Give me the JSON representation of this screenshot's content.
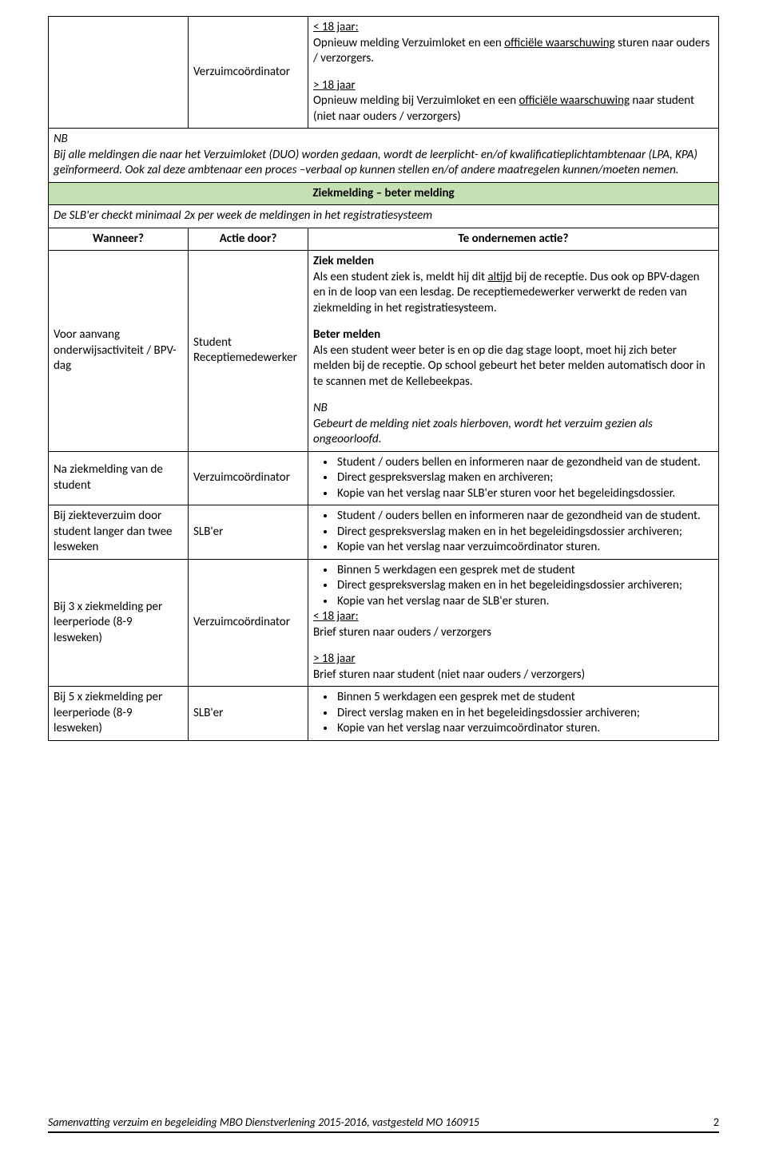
{
  "row1": {
    "col2": "Verzuimcoördinator",
    "u18_h": "< 18 jaar:",
    "u18_text1": "Opnieuw melding Verzuimloket en een ",
    "u18_u": "officiële waarschuwing",
    "u18_text2": " sturen naar ouders / verzorgers.",
    "o18_h": "> 18 jaar",
    "o18_text1": "Opnieuw melding bij Verzuimloket en een ",
    "o18_u": "officiële waarschuwing",
    "o18_text2": " naar student (niet naar ouders / verzorgers)"
  },
  "nb_row": {
    "nb": "NB",
    "line1a": "Bij alle meldingen die naar het Verzuimloket (DUO) worden gedaan, wordt de leerplicht",
    "line1b": "- en/of kwalificatieplichtambtenaar (LPA, KPA) geïnformeerd. Ook zal deze ambtenaar een proces –verbaal op kunnen stellen en/of andere maatregelen kunnen/moeten nemen."
  },
  "section": "Ziekmelding – beter melding",
  "intro": "De SLB'er checkt minimaal 2x per week de meldingen in het registratiesysteem",
  "headers": {
    "when": "Wanneer?",
    "who": "Actie door?",
    "what": "Te ondernemen actie?"
  },
  "row_a": {
    "when": "Voor aanvang onderwijsactiviteit / BPV-dag",
    "who": "Student Receptiemedewerker",
    "ziek_h": "Ziek melden",
    "ziek_t1": "Als een student ziek is, meldt hij dit ",
    "ziek_u": "altijd",
    "ziek_t2": " bij de receptie. Dus ook op BPV-dagen en in de loop van een lesdag. De receptiemedewerker verwerkt de reden van ziekmelding in het registratiesysteem.",
    "beter_h": "Beter melden",
    "beter_t": "Als een student weer beter is en op die dag stage loopt, moet hij zich beter melden bij de receptie. Op school gebeurt het beter melden automatisch door in te scannen met de Kellebeekpas.",
    "nb": "NB",
    "nb_t": "Gebeurt de melding niet zoals hierboven, wordt het verzuim gezien als ongeoorloofd."
  },
  "row_b": {
    "when": "Na ziekmelding van de student",
    "who": "Verzuimcoördinator",
    "li1": "Student / ouders bellen en informeren naar de gezondheid van de student.",
    "li2": "Direct gespreksverslag maken en archiveren;",
    "li3": "Kopie van het verslag naar SLB'er sturen voor het begeleidingsdossier."
  },
  "row_c": {
    "when": "Bij ziekteverzuim door student langer dan twee lesweken",
    "who": "SLB'er",
    "li1": "Student / ouders bellen en informeren naar de gezondheid van de student.",
    "li2": "Direct gespreksverslag maken en in het begeleidingsdossier archiveren;",
    "li3": "Kopie van het verslag naar verzuimcoördinator sturen."
  },
  "row_d": {
    "when": "Bij 3 x ziekmelding per leerperiode (8-9 lesweken)",
    "who": "Verzuimcoördinator",
    "li1": "Binnen 5 werkdagen een gesprek met de student",
    "li2": "Direct gespreksverslag maken en in het begeleidingsdossier archiveren;",
    "li3": "Kopie van het verslag naar de SLB'er sturen.",
    "u18_h": "< 18 jaar:",
    "u18_t": "Brief sturen naar ouders / verzorgers",
    "o18_h": "> 18 jaar",
    "o18_t": "Brief sturen naar student (niet naar ouders / verzorgers)"
  },
  "row_e": {
    "when": "Bij 5 x ziekmelding per leerperiode (8-9 lesweken)",
    "who": "SLB'er",
    "li1": "Binnen 5 werkdagen een gesprek met de student",
    "li2": "Direct verslag maken en in het begeleidingsdossier archiveren;",
    "li3": "Kopie van het verslag naar verzuimcoördinator sturen."
  },
  "footer": {
    "text": "Samenvatting verzuim en begeleiding MBO Dienstverlening 2015-2016, vastgesteld MO 160915",
    "page": "2"
  }
}
